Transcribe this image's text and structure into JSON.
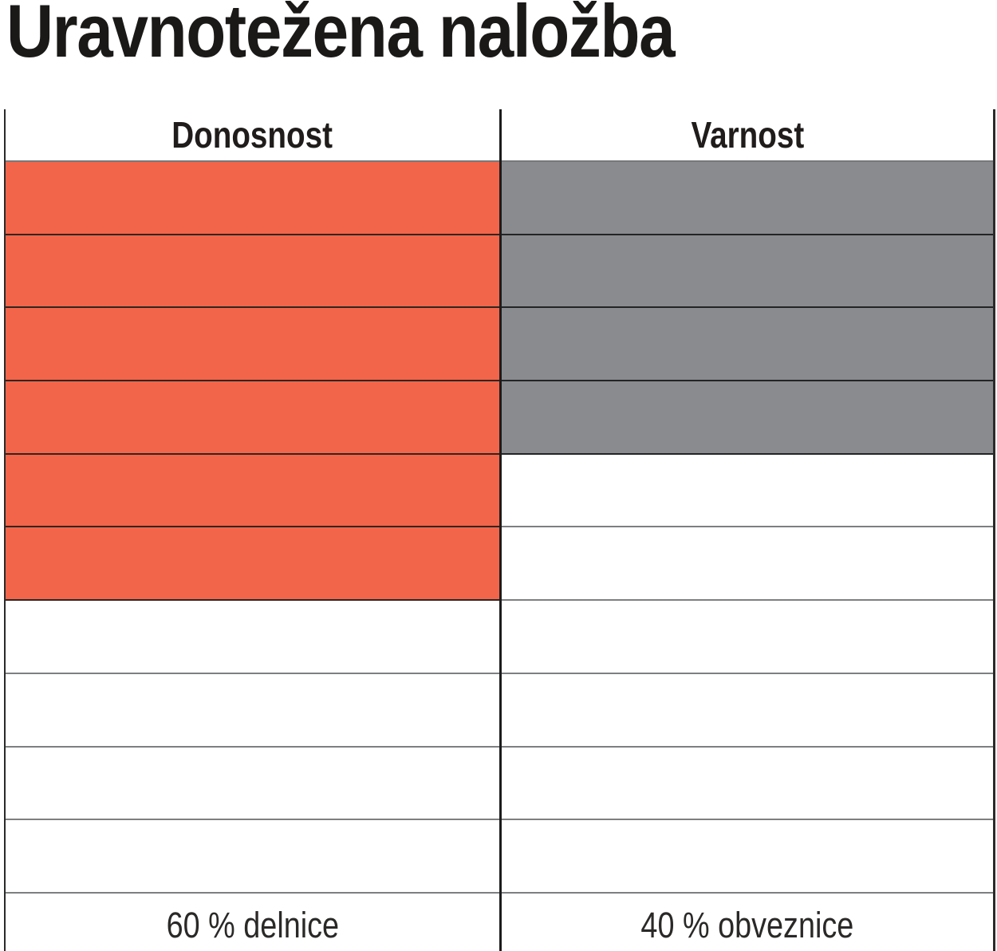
{
  "title": "Uravnotežena naložba",
  "table": {
    "total_rows": 10,
    "columns": [
      {
        "key": "donosnost",
        "header": "Donosnost",
        "footer": "60 % delnice",
        "filled_rows": 6,
        "fill_color": "#F2654A",
        "cell_border_color": "#2E2522"
      },
      {
        "key": "varnost",
        "header": "Varnost",
        "footer": "40 % obveznice",
        "filled_rows": 4,
        "fill_color": "#898B8E",
        "cell_border_color": "#232425"
      }
    ]
  },
  "chart_data": {
    "type": "table",
    "title": "Uravnotežena naložba",
    "categories": [
      "Donosnost",
      "Varnost"
    ],
    "series": [
      {
        "name": "filled cells (out of 10)",
        "values": [
          6,
          4
        ]
      }
    ],
    "annotations": [
      "60 % delnice",
      "40 % obveznice"
    ],
    "colors": [
      "#F2654A",
      "#898B8E"
    ],
    "layout": "two-column grid of 10 rows each; cells filled from the top down; footer row shows allocation labels",
    "legend_position": "none",
    "grid": true
  }
}
